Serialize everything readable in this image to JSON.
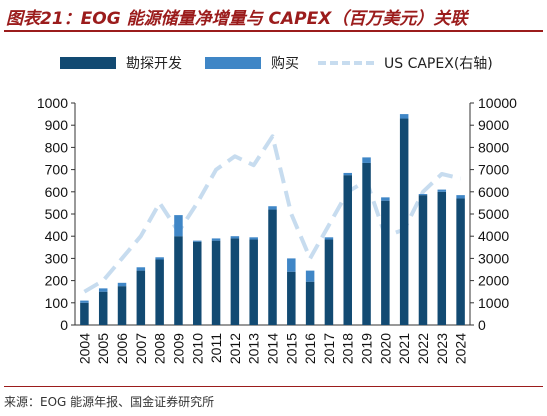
{
  "title": "图表21：EOG 能源储量净增量与 CAPEX（百万美元）关联",
  "source": "来源：EOG 能源年报、国金证券研究所",
  "colors": {
    "exploration": "#124a72",
    "purchase": "#3f86c6",
    "capex": "#c7dcef",
    "title": "#9b1c1c"
  },
  "chart_data": {
    "type": "bar",
    "categories": [
      "2004",
      "2005",
      "2006",
      "2007",
      "2008",
      "2009",
      "2010",
      "2011",
      "2012",
      "2013",
      "2014",
      "2015",
      "2016",
      "2017",
      "2018",
      "2019",
      "2020",
      "2021",
      "2022",
      "2023",
      "2024"
    ],
    "series": [
      {
        "name": "勘探开发",
        "kind": "bar",
        "axis": "left",
        "color": "#124a72",
        "values": [
          100,
          150,
          175,
          245,
          295,
          400,
          375,
          380,
          390,
          385,
          520,
          240,
          195,
          385,
          675,
          730,
          560,
          930,
          585,
          600,
          570
        ]
      },
      {
        "name": "购买",
        "kind": "bar",
        "axis": "left",
        "color": "#3f86c6",
        "values": [
          10,
          15,
          15,
          15,
          10,
          95,
          5,
          10,
          10,
          10,
          15,
          60,
          50,
          10,
          10,
          25,
          15,
          20,
          5,
          10,
          15
        ]
      },
      {
        "name": "US CAPEX(右轴)",
        "kind": "line",
        "axis": "right",
        "color": "#c7dcef",
        "values": [
          1500,
          2000,
          3000,
          4000,
          5500,
          4200,
          5500,
          7000,
          7600,
          7200,
          8500,
          5000,
          3000,
          4500,
          6000,
          6500,
          4000,
          4300,
          6000,
          6800,
          6600
        ]
      }
    ],
    "stacked": true,
    "ylim": [
      0,
      1000
    ],
    "y_ticks": [
      0,
      100,
      200,
      300,
      400,
      500,
      600,
      700,
      800,
      900,
      1000
    ],
    "y2lim": [
      0,
      10000
    ],
    "y2_ticks": [
      0,
      1000,
      2000,
      3000,
      4000,
      5000,
      6000,
      7000,
      8000,
      9000,
      10000
    ],
    "legend": "top",
    "grid": false
  }
}
